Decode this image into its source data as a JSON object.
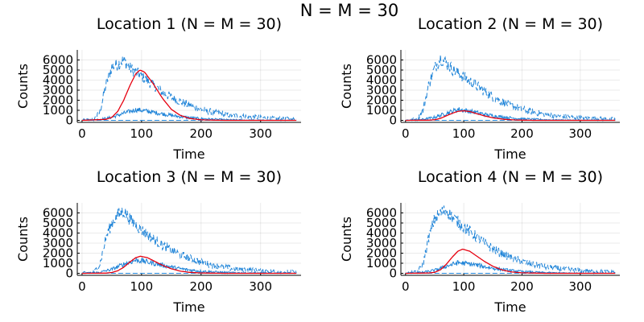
{
  "figure": {
    "title": "N = M = 30"
  },
  "colors": {
    "blue": "#1f84d8",
    "red": "#e6000f",
    "grid": "#000000",
    "background": "#ffffff"
  },
  "chart_data": [
    {
      "type": "line",
      "title": "Location 1 (N = M = 30)",
      "xlabel": "Time",
      "ylabel": "Counts",
      "xlim": [
        -8,
        368
      ],
      "ylim": [
        -200,
        7000
      ],
      "xticks": [
        "0",
        "100",
        "200",
        "300"
      ],
      "yticks": [
        "0",
        "1000",
        "2000",
        "3000",
        "4000",
        "5000",
        "6000"
      ],
      "grid": true,
      "legend": "none",
      "series": [
        {
          "style": "dashed-blue",
          "noisy": true,
          "points": [
            [
              0,
              0
            ],
            [
              20,
              100
            ],
            [
              30,
              800
            ],
            [
              40,
              3500
            ],
            [
              50,
              5300
            ],
            [
              60,
              5600
            ],
            [
              70,
              6000
            ],
            [
              80,
              5200
            ],
            [
              100,
              4400
            ],
            [
              120,
              3500
            ],
            [
              140,
              2600
            ],
            [
              160,
              2000
            ],
            [
              180,
              1500
            ],
            [
              200,
              1100
            ],
            [
              220,
              800
            ],
            [
              250,
              500
            ],
            [
              280,
              350
            ],
            [
              320,
              200
            ],
            [
              360,
              100
            ]
          ]
        },
        {
          "style": "dashed-blue",
          "noisy": false,
          "points": [
            [
              0,
              0
            ],
            [
              360,
              0
            ]
          ]
        },
        {
          "style": "solid-blue",
          "noisy": true,
          "points": [
            [
              0,
              0
            ],
            [
              30,
              100
            ],
            [
              50,
              300
            ],
            [
              70,
              700
            ],
            [
              90,
              1050
            ],
            [
              100,
              1000
            ],
            [
              120,
              800
            ],
            [
              140,
              600
            ],
            [
              160,
              400
            ],
            [
              180,
              270
            ],
            [
              200,
              170
            ],
            [
              240,
              60
            ],
            [
              280,
              20
            ],
            [
              360,
              0
            ]
          ]
        },
        {
          "style": "solid-red",
          "noisy": false,
          "points": [
            [
              0,
              0
            ],
            [
              40,
              100
            ],
            [
              50,
              300
            ],
            [
              60,
              900
            ],
            [
              70,
              2000
            ],
            [
              80,
              3400
            ],
            [
              90,
              4600
            ],
            [
              97,
              5000
            ],
            [
              105,
              4800
            ],
            [
              120,
              3600
            ],
            [
              135,
              2200
            ],
            [
              150,
              1100
            ],
            [
              165,
              500
            ],
            [
              180,
              200
            ],
            [
              200,
              50
            ],
            [
              240,
              0
            ],
            [
              360,
              0
            ]
          ]
        }
      ]
    },
    {
      "type": "line",
      "title": "Location 2 (N = M = 30)",
      "xlabel": "Time",
      "ylabel": "Counts",
      "xlim": [
        -8,
        368
      ],
      "ylim": [
        -200,
        7000
      ],
      "xticks": [
        "0",
        "100",
        "200",
        "300"
      ],
      "yticks": [
        "0",
        "1000",
        "2000",
        "3000",
        "4000",
        "5000",
        "6000"
      ],
      "grid": true,
      "legend": "none",
      "series": [
        {
          "style": "dashed-blue",
          "noisy": true,
          "points": [
            [
              0,
              0
            ],
            [
              20,
              100
            ],
            [
              30,
              1000
            ],
            [
              40,
              3600
            ],
            [
              50,
              5200
            ],
            [
              60,
              6200
            ],
            [
              70,
              5700
            ],
            [
              80,
              5100
            ],
            [
              100,
              4300
            ],
            [
              120,
              3500
            ],
            [
              140,
              2700
            ],
            [
              160,
              2000
            ],
            [
              180,
              1500
            ],
            [
              200,
              1100
            ],
            [
              220,
              800
            ],
            [
              250,
              500
            ],
            [
              280,
              350
            ],
            [
              320,
              200
            ],
            [
              360,
              100
            ]
          ]
        },
        {
          "style": "dashed-blue",
          "noisy": false,
          "points": [
            [
              0,
              0
            ],
            [
              360,
              0
            ]
          ]
        },
        {
          "style": "solid-blue",
          "noisy": true,
          "points": [
            [
              0,
              0
            ],
            [
              30,
              100
            ],
            [
              50,
              300
            ],
            [
              70,
              700
            ],
            [
              90,
              1100
            ],
            [
              100,
              1000
            ],
            [
              120,
              800
            ],
            [
              140,
              550
            ],
            [
              160,
              380
            ],
            [
              180,
              250
            ],
            [
              200,
              150
            ],
            [
              240,
              60
            ],
            [
              280,
              20
            ],
            [
              360,
              0
            ]
          ]
        },
        {
          "style": "solid-red",
          "noisy": false,
          "points": [
            [
              0,
              0
            ],
            [
              40,
              20
            ],
            [
              50,
              60
            ],
            [
              60,
              200
            ],
            [
              70,
              450
            ],
            [
              80,
              700
            ],
            [
              90,
              900
            ],
            [
              100,
              950
            ],
            [
              110,
              880
            ],
            [
              120,
              700
            ],
            [
              135,
              450
            ],
            [
              150,
              250
            ],
            [
              170,
              100
            ],
            [
              190,
              30
            ],
            [
              220,
              0
            ],
            [
              360,
              0
            ]
          ]
        }
      ]
    },
    {
      "type": "line",
      "title": "Location 3 (N = M = 30)",
      "xlabel": "Time",
      "ylabel": "Counts",
      "xlim": [
        -8,
        368
      ],
      "ylim": [
        -200,
        7000
      ],
      "xticks": [
        "0",
        "100",
        "200",
        "300"
      ],
      "yticks": [
        "0",
        "1000",
        "2000",
        "3000",
        "4000",
        "5000",
        "6000"
      ],
      "grid": true,
      "legend": "none",
      "series": [
        {
          "style": "dashed-blue",
          "noisy": true,
          "points": [
            [
              0,
              0
            ],
            [
              20,
              100
            ],
            [
              30,
              900
            ],
            [
              40,
              3500
            ],
            [
              50,
              5000
            ],
            [
              60,
              5800
            ],
            [
              70,
              6200
            ],
            [
              80,
              5400
            ],
            [
              100,
              4300
            ],
            [
              120,
              3400
            ],
            [
              140,
              2600
            ],
            [
              160,
              2000
            ],
            [
              180,
              1500
            ],
            [
              200,
              1100
            ],
            [
              220,
              800
            ],
            [
              250,
              500
            ],
            [
              280,
              350
            ],
            [
              320,
              200
            ],
            [
              360,
              100
            ]
          ]
        },
        {
          "style": "dashed-blue",
          "noisy": false,
          "points": [
            [
              0,
              0
            ],
            [
              360,
              0
            ]
          ]
        },
        {
          "style": "solid-blue",
          "noisy": true,
          "points": [
            [
              0,
              0
            ],
            [
              30,
              100
            ],
            [
              50,
              400
            ],
            [
              70,
              900
            ],
            [
              90,
              1300
            ],
            [
              100,
              1250
            ],
            [
              120,
              1000
            ],
            [
              140,
              750
            ],
            [
              160,
              500
            ],
            [
              180,
              330
            ],
            [
              200,
              210
            ],
            [
              240,
              80
            ],
            [
              280,
              30
            ],
            [
              360,
              0
            ]
          ]
        },
        {
          "style": "solid-red",
          "noisy": false,
          "points": [
            [
              0,
              0
            ],
            [
              40,
              20
            ],
            [
              50,
              80
            ],
            [
              60,
              250
            ],
            [
              70,
              600
            ],
            [
              80,
              1100
            ],
            [
              90,
              1550
            ],
            [
              98,
              1700
            ],
            [
              110,
              1550
            ],
            [
              120,
              1250
            ],
            [
              135,
              800
            ],
            [
              150,
              450
            ],
            [
              165,
              220
            ],
            [
              180,
              100
            ],
            [
              200,
              30
            ],
            [
              240,
              0
            ],
            [
              360,
              0
            ]
          ]
        }
      ]
    },
    {
      "type": "line",
      "title": "Location 4 (N = M = 30)",
      "xlabel": "Time",
      "ylabel": "Counts",
      "xlim": [
        -8,
        368
      ],
      "ylim": [
        -200,
        7000
      ],
      "xticks": [
        "0",
        "100",
        "200",
        "300"
      ],
      "yticks": [
        "0",
        "1000",
        "2000",
        "3000",
        "4000",
        "5000",
        "6000"
      ],
      "grid": true,
      "legend": "none",
      "series": [
        {
          "style": "dashed-blue",
          "noisy": true,
          "points": [
            [
              0,
              0
            ],
            [
              20,
              100
            ],
            [
              30,
              900
            ],
            [
              40,
              3600
            ],
            [
              50,
              5400
            ],
            [
              60,
              6000
            ],
            [
              70,
              6300
            ],
            [
              80,
              5600
            ],
            [
              100,
              4600
            ],
            [
              120,
              3700
            ],
            [
              140,
              2800
            ],
            [
              160,
              2100
            ],
            [
              180,
              1600
            ],
            [
              200,
              1150
            ],
            [
              220,
              850
            ],
            [
              250,
              550
            ],
            [
              280,
              350
            ],
            [
              320,
              200
            ],
            [
              360,
              100
            ]
          ]
        },
        {
          "style": "dashed-blue",
          "noisy": false,
          "points": [
            [
              0,
              0
            ],
            [
              360,
              0
            ]
          ]
        },
        {
          "style": "solid-blue",
          "noisy": true,
          "points": [
            [
              0,
              0
            ],
            [
              30,
              100
            ],
            [
              50,
              300
            ],
            [
              70,
              700
            ],
            [
              90,
              1050
            ],
            [
              100,
              1000
            ],
            [
              120,
              850
            ],
            [
              140,
              600
            ],
            [
              160,
              420
            ],
            [
              180,
              280
            ],
            [
              200,
              170
            ],
            [
              240,
              60
            ],
            [
              280,
              20
            ],
            [
              360,
              0
            ]
          ]
        },
        {
          "style": "solid-red",
          "noisy": false,
          "points": [
            [
              0,
              0
            ],
            [
              40,
              30
            ],
            [
              50,
              100
            ],
            [
              60,
              350
            ],
            [
              70,
              900
            ],
            [
              80,
              1600
            ],
            [
              90,
              2200
            ],
            [
              98,
              2400
            ],
            [
              110,
              2200
            ],
            [
              120,
              1800
            ],
            [
              135,
              1200
            ],
            [
              150,
              700
            ],
            [
              165,
              350
            ],
            [
              180,
              150
            ],
            [
              200,
              50
            ],
            [
              240,
              0
            ],
            [
              360,
              0
            ]
          ]
        }
      ]
    }
  ]
}
